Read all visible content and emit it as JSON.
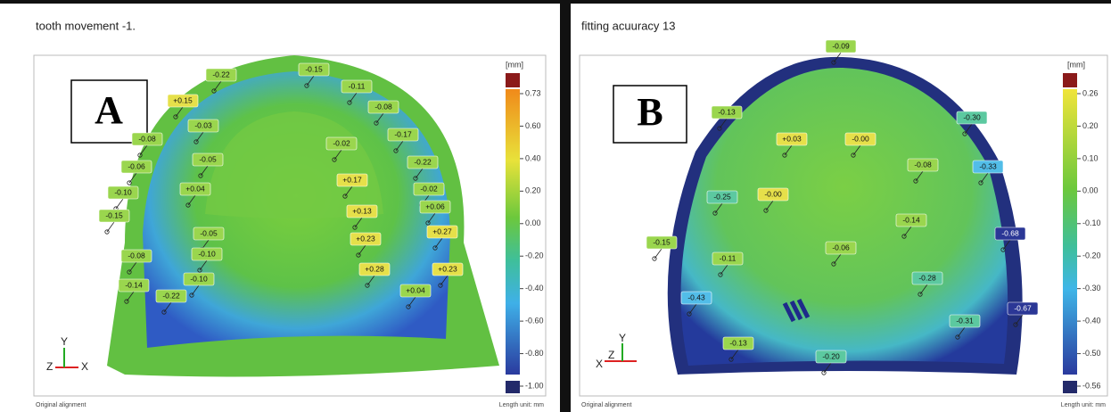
{
  "panels": [
    {
      "title": "tooth movement -1.",
      "letter": "A",
      "unit": "[mm]",
      "colorbar_ticks": [
        "0.73",
        "0.60",
        "0.40",
        "0.20",
        "0.00",
        "-0.20",
        "-0.40",
        "-0.60",
        "-0.80",
        "-1.00"
      ],
      "annotations": [
        "-0.22",
        "-0.15",
        "+0.15",
        "-0.11",
        "-0.03",
        "-0.08",
        "-0.08",
        "-0.02",
        "-0.17",
        "-0.06",
        "-0.05",
        "-0.22",
        "+0.04",
        "+0.17",
        "-0.10",
        "-0.02",
        "+0.13",
        "+0.06",
        "-0.15",
        "-0.05",
        "+0.23",
        "+0.27",
        "-0.08",
        "-0.10",
        "+0.28",
        "+0.23",
        "-0.14",
        "-0.10",
        "-0.22",
        "+0.04"
      ],
      "axes": {
        "x": "X",
        "y": "Y",
        "z": "Z"
      },
      "footer_left": "Original alignment",
      "footer_right": "Length unit: mm"
    },
    {
      "title": "fitting acuuracy 13",
      "letter": "B",
      "unit": "[mm]",
      "colorbar_ticks": [
        "0.26",
        "0.20",
        "0.10",
        "0.00",
        "-0.10",
        "-0.20",
        "-0.30",
        "-0.40",
        "-0.50",
        "-0.56"
      ],
      "annotations": [
        "-0.09",
        "-0.13",
        "-0.30",
        "+0.03",
        "-0.00",
        "-0.08",
        "-0.33",
        "-0.25",
        "-0.00",
        "-0.14",
        "-0.15",
        "-0.68",
        "-0.06",
        "-0.11",
        "-0.28",
        "-0.43",
        "-0.67",
        "-0.31",
        "-0.13",
        "-0.20"
      ],
      "axes": {
        "x": "X",
        "y": "Y",
        "z": "Z"
      },
      "footer_left": "Original alignment",
      "footer_right": "Length unit: mm"
    }
  ]
}
